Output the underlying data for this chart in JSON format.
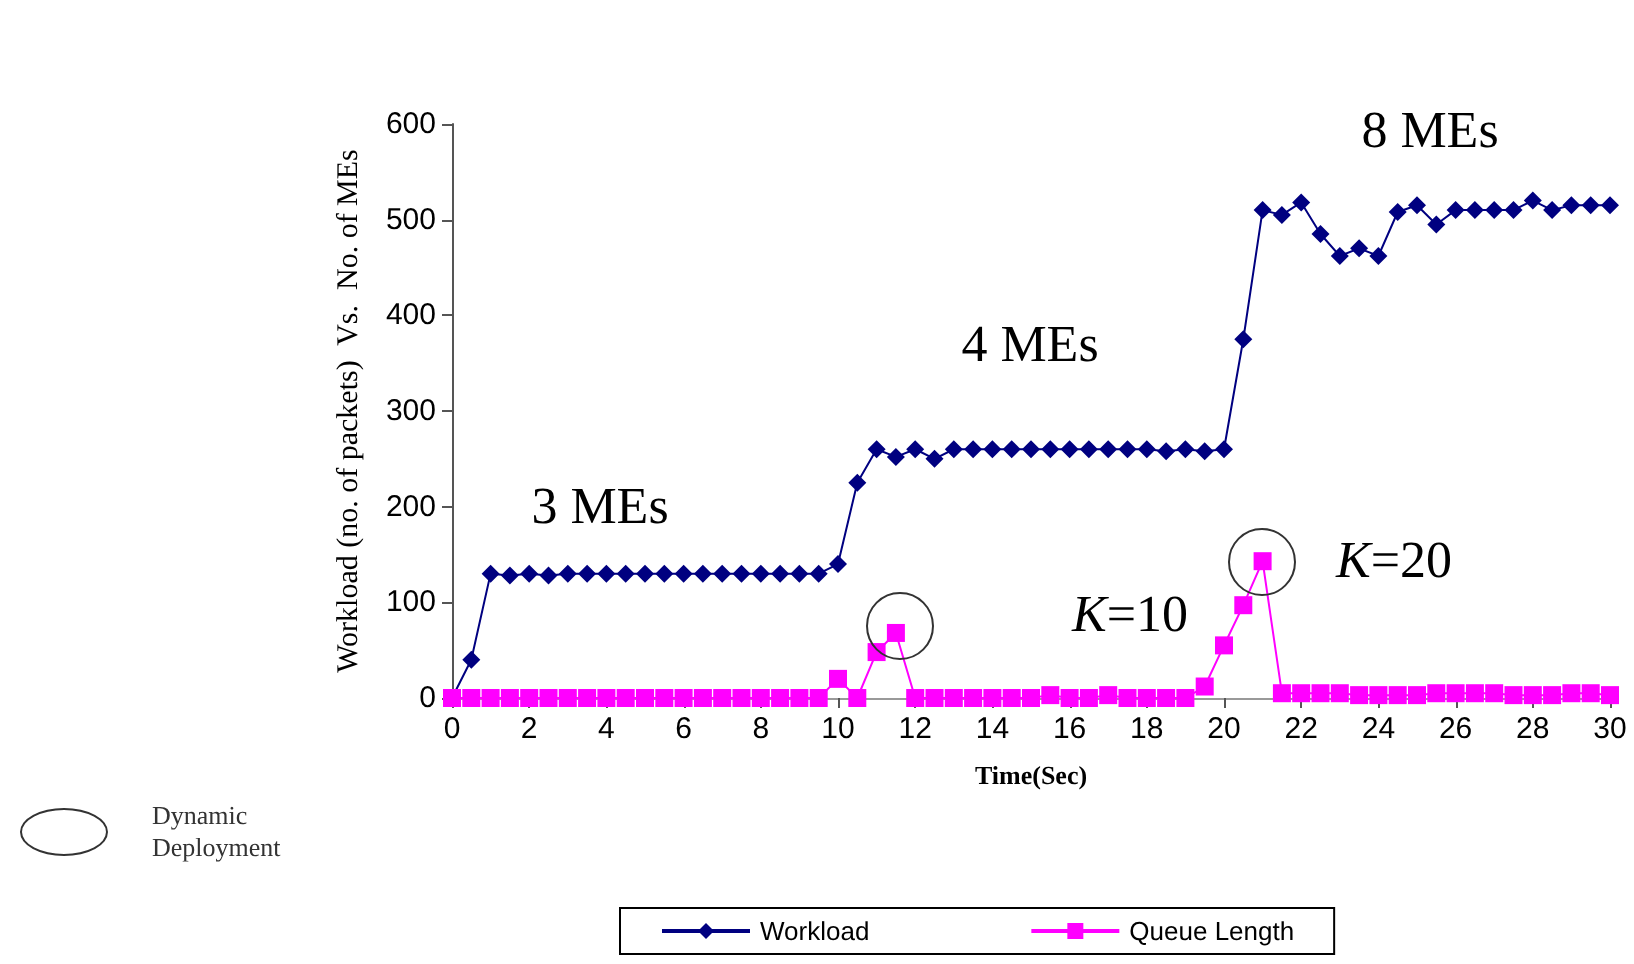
{
  "chart_data": {
    "type": "line",
    "xlabel": "Time(Sec)",
    "ylabel": "Workload (no. of packets)  Vs.  No. of MEs",
    "x": [
      0,
      0.5,
      1,
      1.5,
      2,
      2.5,
      3,
      3.5,
      4,
      4.5,
      5,
      5.5,
      6,
      6.5,
      7,
      7.5,
      8,
      8.5,
      9,
      9.5,
      10,
      10.5,
      11,
      11.5,
      12,
      12.5,
      13,
      13.5,
      14,
      14.5,
      15,
      15.5,
      16,
      16.5,
      17,
      17.5,
      18,
      18.5,
      19,
      19.5,
      20,
      20.5,
      21,
      21.5,
      22,
      22.5,
      23,
      23.5,
      24,
      24.5,
      25,
      25.5,
      26,
      26.5,
      27,
      27.5,
      28,
      28.5,
      29,
      29.5,
      30
    ],
    "series": [
      {
        "name": "Workload",
        "color": "#000080",
        "marker": "diamond",
        "values": [
          0,
          40,
          130,
          128,
          130,
          128,
          130,
          130,
          130,
          130,
          130,
          130,
          130,
          130,
          130,
          130,
          130,
          130,
          130,
          130,
          140,
          225,
          260,
          252,
          260,
          250,
          260,
          260,
          260,
          260,
          260,
          260,
          260,
          260,
          260,
          260,
          260,
          258,
          260,
          258,
          260,
          375,
          510,
          505,
          518,
          485,
          462,
          470,
          462,
          508,
          515,
          495,
          510,
          510,
          510,
          510,
          520,
          510,
          515,
          515,
          515
        ]
      },
      {
        "name": "Queue Length",
        "color": "#ff00ff",
        "marker": "square",
        "values": [
          0,
          0,
          0,
          0,
          0,
          0,
          0,
          0,
          0,
          0,
          0,
          0,
          0,
          0,
          0,
          0,
          0,
          0,
          0,
          0,
          20,
          0,
          48,
          68,
          0,
          0,
          0,
          0,
          0,
          0,
          0,
          3,
          0,
          0,
          3,
          0,
          0,
          0,
          0,
          12,
          55,
          97,
          143,
          5,
          5,
          5,
          5,
          3,
          3,
          3,
          3,
          5,
          5,
          5,
          5,
          3,
          3,
          3,
          5,
          5,
          3
        ]
      }
    ],
    "xlim": [
      0,
      30
    ],
    "xticks": [
      0,
      2,
      4,
      6,
      8,
      10,
      12,
      14,
      16,
      18,
      20,
      22,
      24,
      26,
      28,
      30
    ],
    "ylim": [
      0,
      600
    ],
    "yticks": [
      0,
      100,
      200,
      300,
      400,
      500,
      600
    ],
    "grid": false,
    "legend": "bottom",
    "annotations": [
      "3 MEs",
      "4 MEs",
      "8 MEs",
      "K=10",
      "K=20",
      "Dynamic Deployment"
    ]
  }
}
